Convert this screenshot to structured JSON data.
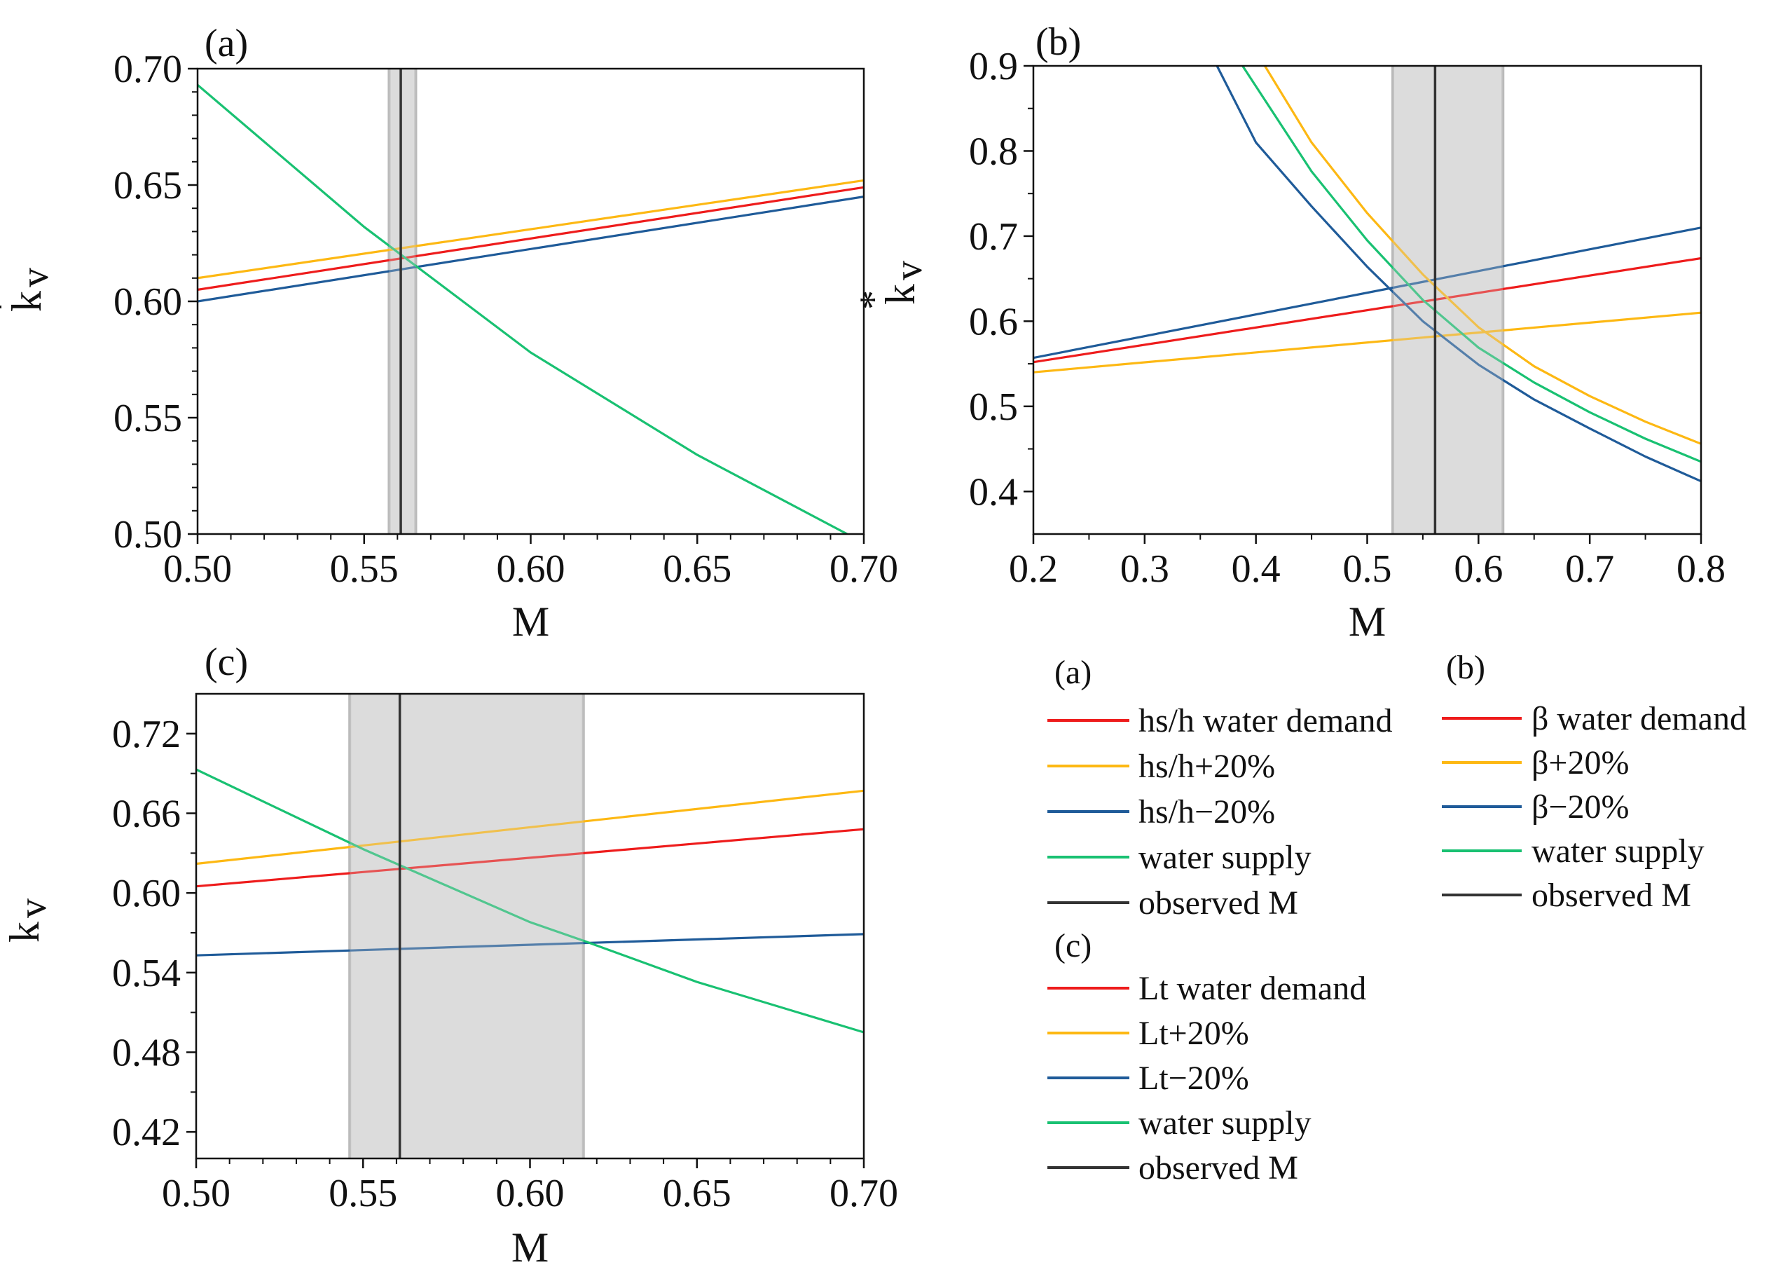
{
  "colors": {
    "demand": "#ee1c1c",
    "plus20": "#fdb813",
    "minus20": "#1f5b99",
    "supply": "#19c172",
    "observed": "#333333",
    "band_fill": "#d4d4d4",
    "band_edge": "#b9b9b9"
  },
  "chart_data": [
    {
      "type": "line",
      "panel_label": "(a)",
      "xlabel": "M",
      "ylabel_base": "k",
      "ylabel_sup": "*",
      "ylabel_sub": "v",
      "xlim": [
        0.5,
        0.7
      ],
      "ylim": [
        0.5,
        0.7
      ],
      "xticks": [
        "0.50",
        "0.55",
        "0.60",
        "0.65",
        "0.70"
      ],
      "yticks": [
        "0.50",
        "0.55",
        "0.60",
        "0.65",
        "0.70"
      ],
      "observed_band": [
        0.5575,
        0.5655
      ],
      "observed_m": 0.561,
      "series": [
        {
          "key": "demand",
          "x": [
            0.5,
            0.7
          ],
          "y": [
            0.605,
            0.649
          ]
        },
        {
          "key": "plus20",
          "x": [
            0.5,
            0.7
          ],
          "y": [
            0.61,
            0.652
          ]
        },
        {
          "key": "minus20",
          "x": [
            0.5,
            0.7
          ],
          "y": [
            0.6,
            0.645
          ]
        },
        {
          "key": "supply",
          "x": [
            0.5,
            0.55,
            0.6,
            0.65,
            0.695
          ],
          "y": [
            0.693,
            0.632,
            0.578,
            0.534,
            0.5
          ]
        }
      ]
    },
    {
      "type": "line",
      "panel_label": "(b)",
      "xlabel": "M",
      "ylabel_base": "k",
      "ylabel_sup": "*",
      "ylabel_sub": "v",
      "xlim": [
        0.2,
        0.8
      ],
      "ylim": [
        0.35,
        0.9
      ],
      "xticks": [
        "0.2",
        "0.3",
        "0.4",
        "0.5",
        "0.6",
        "0.7",
        "0.8"
      ],
      "yticks": [
        "0.4",
        "0.5",
        "0.6",
        "0.7",
        "0.8",
        "0.9"
      ],
      "observed_band": [
        0.523,
        0.622
      ],
      "observed_m": 0.561,
      "series": [
        {
          "key": "demand",
          "x": [
            0.2,
            0.8
          ],
          "y": [
            0.552,
            0.674
          ]
        },
        {
          "key": "plus20",
          "x": [
            0.2,
            0.8
          ],
          "y": [
            0.54,
            0.61
          ]
        },
        {
          "key": "minus20",
          "x": [
            0.2,
            0.8
          ],
          "y": [
            0.557,
            0.71
          ]
        },
        {
          "key": "supply",
          "x": [
            0.388,
            0.45,
            0.5,
            0.55,
            0.6,
            0.65,
            0.7,
            0.75,
            0.8
          ],
          "y": [
            0.9,
            0.776,
            0.695,
            0.625,
            0.569,
            0.528,
            0.493,
            0.462,
            0.435
          ]
        },
        {
          "key": "plus20",
          "x": [
            0.408,
            0.45,
            0.5,
            0.55,
            0.6,
            0.65,
            0.7,
            0.75,
            0.8
          ],
          "y": [
            0.9,
            0.81,
            0.727,
            0.655,
            0.593,
            0.547,
            0.512,
            0.482,
            0.456
          ]
        },
        {
          "key": "minus20",
          "x": [
            0.365,
            0.4,
            0.45,
            0.5,
            0.55,
            0.6,
            0.65,
            0.7,
            0.75,
            0.8
          ],
          "y": [
            0.9,
            0.81,
            0.735,
            0.664,
            0.6,
            0.549,
            0.508,
            0.474,
            0.441,
            0.412
          ]
        }
      ]
    },
    {
      "type": "line",
      "panel_label": "(c)",
      "xlabel": "M",
      "ylabel_base": "k",
      "ylabel_sup": "*",
      "ylabel_sub": "v",
      "xlim": [
        0.5,
        0.7
      ],
      "ylim": [
        0.4,
        0.75
      ],
      "xticks": [
        "0.50",
        "0.55",
        "0.60",
        "0.65",
        "0.70"
      ],
      "yticks": [
        "0.42",
        "0.48",
        "0.54",
        "0.60",
        "0.66",
        "0.72"
      ],
      "observed_band": [
        0.546,
        0.616
      ],
      "observed_m": 0.561,
      "series": [
        {
          "key": "demand",
          "x": [
            0.5,
            0.7
          ],
          "y": [
            0.605,
            0.648
          ]
        },
        {
          "key": "plus20",
          "x": [
            0.5,
            0.7
          ],
          "y": [
            0.622,
            0.677
          ]
        },
        {
          "key": "minus20",
          "x": [
            0.5,
            0.7
          ],
          "y": [
            0.553,
            0.569
          ]
        },
        {
          "key": "supply",
          "x": [
            0.5,
            0.55,
            0.6,
            0.616,
            0.65,
            0.7
          ],
          "y": [
            0.693,
            0.633,
            0.578,
            0.564,
            0.533,
            0.495
          ]
        }
      ]
    }
  ],
  "legend": {
    "a": {
      "title": "(a)",
      "items": [
        {
          "key": "demand",
          "label": "hs/h water demand"
        },
        {
          "key": "plus20",
          "label": "hs/h+20%"
        },
        {
          "key": "minus20",
          "label": "hs/h−20%"
        },
        {
          "key": "supply",
          "label": "water supply"
        },
        {
          "key": "observed",
          "label": "observed M"
        }
      ]
    },
    "b": {
      "title": "(b)",
      "items": [
        {
          "key": "demand",
          "label": "β water demand"
        },
        {
          "key": "plus20",
          "label": "β+20%"
        },
        {
          "key": "minus20",
          "label": "β−20%"
        },
        {
          "key": "supply",
          "label": "water supply"
        },
        {
          "key": "observed",
          "label": "observed M"
        }
      ]
    },
    "c": {
      "title": "(c)",
      "items": [
        {
          "key": "demand",
          "label": "Lt water demand"
        },
        {
          "key": "plus20",
          "label": "Lt+20%"
        },
        {
          "key": "minus20",
          "label": "Lt−20%"
        },
        {
          "key": "supply",
          "label": "water supply"
        },
        {
          "key": "observed",
          "label": "observed M"
        }
      ]
    }
  }
}
